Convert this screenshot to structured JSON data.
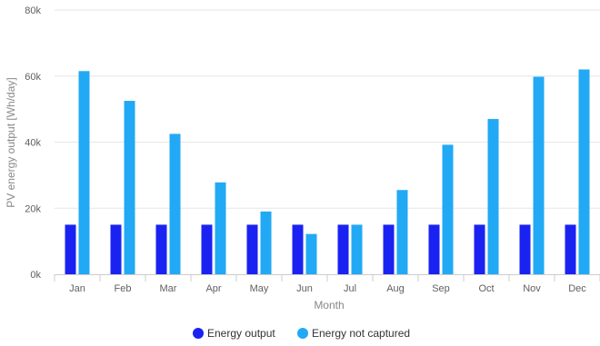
{
  "chart_data": {
    "type": "bar",
    "xlabel": "Month",
    "ylabel": "PV energy output [Wh/day]",
    "ylim": [
      0,
      80000
    ],
    "yticks": [
      0,
      20000,
      40000,
      60000,
      80000
    ],
    "ytick_labels": [
      "0k",
      "20k",
      "40k",
      "60k",
      "80k"
    ],
    "grid": true,
    "legend_position": "bottom-center",
    "categories": [
      "Jan",
      "Feb",
      "Mar",
      "Apr",
      "May",
      "Jun",
      "Jul",
      "Aug",
      "Sep",
      "Oct",
      "Nov",
      "Dec"
    ],
    "series": [
      {
        "name": "Energy output",
        "color": "#1a22f2",
        "values": [
          15000,
          15000,
          15000,
          15000,
          15000,
          15000,
          15000,
          15000,
          15000,
          15000,
          15000,
          15000
        ]
      },
      {
        "name": "Energy not captured",
        "color": "#22a9f5",
        "values": [
          61500,
          52500,
          42500,
          27800,
          19000,
          12200,
          15000,
          25500,
          39200,
          47000,
          59800,
          62000
        ]
      }
    ]
  }
}
